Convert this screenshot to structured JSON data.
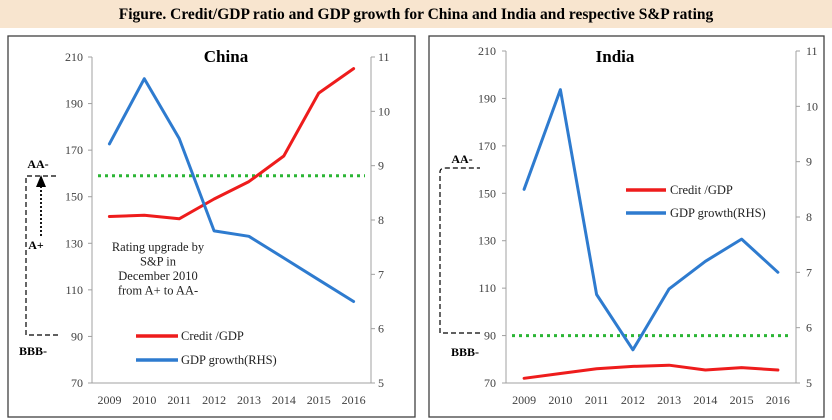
{
  "figure": {
    "title": "Figure. Credit/GDP ratio and GDP growth for China and India and respective S&P rating"
  },
  "colors": {
    "credit_line": "#ee1c1c",
    "gdp_line": "#2e7bcf",
    "rating_line": "#2bb535",
    "panel_border": "#404040",
    "title_band": "#f8e5cf"
  },
  "chart_data": [
    {
      "type": "line",
      "title": "China",
      "x": [
        2009,
        2010,
        2011,
        2012,
        2013,
        2014,
        2015,
        2016
      ],
      "y_left": {
        "min": 70,
        "max": 210,
        "ticks": [
          70,
          90,
          110,
          130,
          150,
          170,
          190,
          210
        ]
      },
      "y_right": {
        "min": 5,
        "max": 11,
        "ticks": [
          5,
          6,
          7,
          8,
          9,
          10,
          11
        ]
      },
      "series": [
        {
          "name": "Credit /GDP",
          "axis": "left",
          "color": "#ee1c1c",
          "values": [
            141.5,
            142,
            140.5,
            149,
            156.5,
            167.5,
            194.5,
            205
          ]
        },
        {
          "name": "GDP growth(RHS)",
          "axis": "right",
          "color": "#2e7bcf",
          "values": [
            9.4,
            10.6,
            9.5,
            7.8,
            7.7,
            7.3,
            6.9,
            6.5
          ]
        }
      ],
      "rating_threshold": {
        "axis": "left",
        "value": 159,
        "style": "dotted",
        "color": "#2bb535"
      },
      "rating_labels": {
        "top": "AA-",
        "middle": "A+",
        "bottom": "BBB-"
      },
      "annotation": [
        "Rating upgrade by",
        "S&P  in",
        "December 2010",
        "from A+ to AA-"
      ],
      "legend_position": "bottom-left",
      "grid": false
    },
    {
      "type": "line",
      "title": "India",
      "x": [
        2009,
        2010,
        2011,
        2012,
        2013,
        2014,
        2015,
        2016
      ],
      "y_left": {
        "min": 70,
        "max": 210,
        "ticks": [
          70,
          90,
          110,
          130,
          150,
          170,
          190,
          210
        ]
      },
      "y_right": {
        "min": 5,
        "max": 11,
        "ticks": [
          5,
          6,
          7,
          8,
          9,
          10,
          11
        ]
      },
      "series": [
        {
          "name": "Credit /GDP",
          "axis": "left",
          "color": "#ee1c1c",
          "values": [
            72,
            74,
            76,
            77,
            77.5,
            75.5,
            76.5,
            75.5
          ]
        },
        {
          "name": "GDP growth(RHS)",
          "axis": "right",
          "color": "#2e7bcf",
          "values": [
            8.5,
            10.3,
            6.6,
            5.6,
            6.7,
            7.2,
            7.6,
            7.0
          ]
        }
      ],
      "rating_threshold": {
        "axis": "left",
        "value": 90,
        "style": "dotted",
        "color": "#2bb535"
      },
      "rating_labels": {
        "top": "AA-",
        "bottom": "BBB-"
      },
      "legend_position": "right",
      "grid": false
    }
  ]
}
